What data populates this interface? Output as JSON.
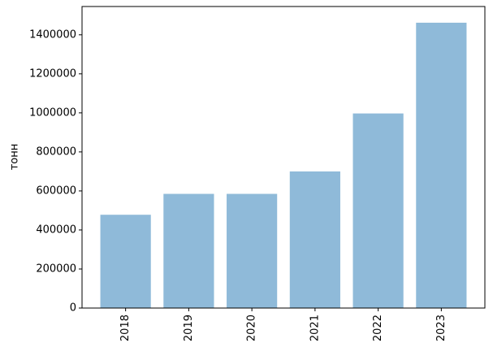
{
  "chart_data": {
    "type": "bar",
    "y_label": "тонн",
    "categories": [
      "2018",
      "2019",
      "2020",
      "2021",
      "2022",
      "2023"
    ],
    "values": [
      478000,
      585000,
      585000,
      700000,
      997000,
      1462000
    ],
    "color": "#8fbad9",
    "ylim": [
      0,
      1545000
    ],
    "yticks": [
      0,
      200000,
      400000,
      600000,
      800000,
      1000000,
      1200000,
      1400000
    ]
  }
}
